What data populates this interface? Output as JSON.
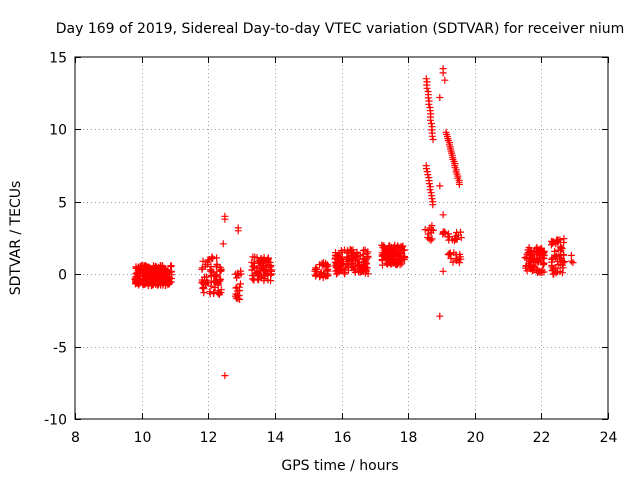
{
  "chart_data": {
    "type": "scatter",
    "title": "Day 169 of 2019, Sidereal Day-to-day VTEC variation (SDTVAR) for receiver nium",
    "xlabel": "GPS time / hours",
    "ylabel": "SDTVAR / TECUs",
    "xlim": [
      8,
      24
    ],
    "ylim": [
      -10,
      15
    ],
    "xticks": [
      8,
      10,
      12,
      14,
      16,
      18,
      20,
      22,
      24
    ],
    "yticks": [
      -10,
      -5,
      0,
      5,
      10,
      15
    ],
    "xtick_labels": [
      "8",
      "10",
      "12",
      "14",
      "16",
      "18",
      "20",
      "22",
      "24"
    ],
    "ytick_labels": [
      "-10",
      "-5",
      "0",
      "5",
      "10",
      "15"
    ],
    "grid": true,
    "marker": "+",
    "color": "#ff0000",
    "series": [
      {
        "name": "SDTVAR",
        "clusters": [
          {
            "x_range": [
              9.8,
              10.9
            ],
            "y_range": [
              -0.8,
              0.6
            ],
            "count": 260
          },
          {
            "x_range": [
              11.8,
              12.4
            ],
            "y_range": [
              -1.4,
              1.2
            ],
            "count": 70
          },
          {
            "x_range": [
              12.8,
              13.0
            ],
            "y_range": [
              -1.8,
              0.4
            ],
            "count": 20
          },
          {
            "x_range": [
              13.3,
              13.9
            ],
            "y_range": [
              -0.5,
              1.2
            ],
            "count": 80
          },
          {
            "x_range": [
              15.2,
              15.6
            ],
            "y_range": [
              -0.3,
              0.8
            ],
            "count": 35
          },
          {
            "x_range": [
              15.8,
              16.8
            ],
            "y_range": [
              0.0,
              1.7
            ],
            "count": 140
          },
          {
            "x_range": [
              17.2,
              17.9
            ],
            "y_range": [
              0.6,
              2.0
            ],
            "count": 120
          },
          {
            "x_range": [
              18.5,
              18.8
            ],
            "y_range": [
              2.3,
              3.4
            ],
            "count": 12
          },
          {
            "x_range": [
              18.9,
              19.6
            ],
            "y_range": [
              2.3,
              3.0
            ],
            "count": 20
          },
          {
            "x_range": [
              19.2,
              19.6
            ],
            "y_range": [
              0.8,
              1.5
            ],
            "count": 15
          },
          {
            "x_range": [
              21.5,
              22.1
            ],
            "y_range": [
              0.1,
              1.9
            ],
            "count": 90
          },
          {
            "x_range": [
              22.3,
              22.7
            ],
            "y_range": [
              0.0,
              2.5
            ],
            "count": 55
          }
        ],
        "trails": [
          {
            "x_start": 18.55,
            "x_end": 18.75,
            "y_start": 13.5,
            "y_end": 9.3,
            "count": 20
          },
          {
            "x_start": 18.55,
            "x_end": 18.75,
            "y_start": 7.5,
            "y_end": 4.8,
            "count": 14
          },
          {
            "x_start": 19.15,
            "x_end": 19.55,
            "y_start": 9.8,
            "y_end": 6.2,
            "count": 26
          }
        ],
        "points": [
          {
            "x": 12.5,
            "y": 4.0
          },
          {
            "x": 12.5,
            "y": 3.8
          },
          {
            "x": 12.45,
            "y": 2.1
          },
          {
            "x": 12.9,
            "y": 3.2
          },
          {
            "x": 12.9,
            "y": 3.0
          },
          {
            "x": 12.5,
            "y": -7.0
          },
          {
            "x": 18.95,
            "y": 12.2
          },
          {
            "x": 19.05,
            "y": 14.2
          },
          {
            "x": 19.05,
            "y": 13.9
          },
          {
            "x": 19.1,
            "y": 13.4
          },
          {
            "x": 18.95,
            "y": 6.1
          },
          {
            "x": 19.05,
            "y": 4.1
          },
          {
            "x": 19.05,
            "y": 0.2
          },
          {
            "x": 18.95,
            "y": -2.9
          },
          {
            "x": 22.9,
            "y": 1.3
          },
          {
            "x": 22.9,
            "y": 0.9
          },
          {
            "x": 22.95,
            "y": 0.8
          }
        ]
      }
    ]
  }
}
